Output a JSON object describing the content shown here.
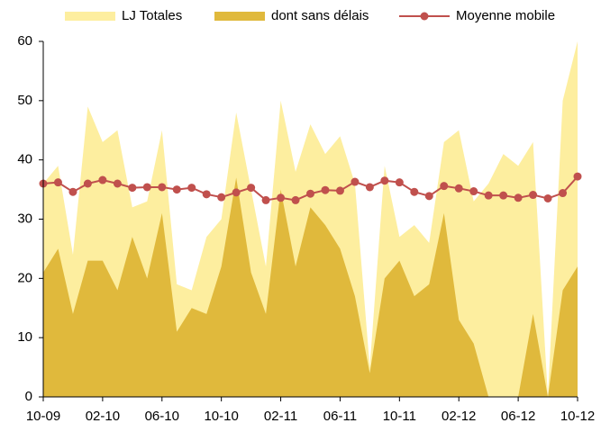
{
  "chart_data": {
    "type": "area-line",
    "categories": [
      "10-09",
      null,
      null,
      null,
      "02-10",
      null,
      null,
      null,
      "06-10",
      null,
      null,
      null,
      "10-10",
      null,
      null,
      null,
      "02-11",
      null,
      null,
      null,
      "06-11",
      null,
      null,
      null,
      "10-11",
      null,
      null,
      null,
      "02-12",
      null,
      null,
      null,
      "06-12",
      null,
      null,
      null,
      "10-12"
    ],
    "series": [
      {
        "name": "LJ Totales",
        "kind": "area",
        "color": "#fdee9f",
        "values": [
          36,
          39,
          24,
          49,
          43,
          45,
          32,
          33,
          45,
          19,
          18,
          27,
          30,
          48,
          35,
          22,
          50,
          38,
          46,
          41,
          44,
          36,
          5,
          39,
          27,
          29,
          26,
          43,
          45,
          33,
          36,
          41,
          39,
          43,
          0,
          50,
          60
        ]
      },
      {
        "name": "dont sans délais",
        "kind": "area",
        "color": "#e0b93c",
        "values": [
          21,
          25,
          14,
          23,
          23,
          18,
          27,
          20,
          31,
          11,
          15,
          14,
          22,
          37,
          21,
          14,
          35,
          22,
          32,
          29,
          25,
          17,
          4,
          20,
          23,
          17,
          19,
          31,
          13,
          9,
          0,
          0,
          0,
          14,
          0,
          18,
          22
        ]
      },
      {
        "name": "Moyenne mobile",
        "kind": "line",
        "color": "#c0504d",
        "values": [
          36,
          36.2,
          34.6,
          36,
          36.6,
          36,
          35.3,
          35.4,
          35.4,
          35,
          35.3,
          34.2,
          33.7,
          34.5,
          35.3,
          33.2,
          33.6,
          33.2,
          34.3,
          34.9,
          34.8,
          36.3,
          35.4,
          36.5,
          36.2,
          34.6,
          33.9,
          35.6,
          35.2,
          34.7,
          34,
          34,
          33.6,
          34.1,
          33.5,
          34.4,
          37.2
        ]
      }
    ],
    "ylim": [
      0,
      60
    ],
    "yticks": [
      0,
      10,
      20,
      30,
      40,
      50,
      60
    ],
    "grid": false
  }
}
